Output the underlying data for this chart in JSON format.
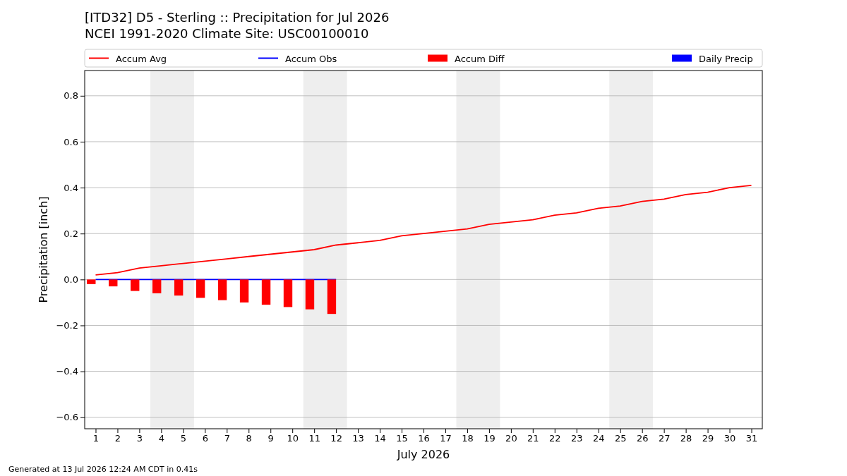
{
  "chart_data": {
    "type": "line",
    "title": "[ITD32] D5 - Sterling  :: Precipitation for Jul 2026",
    "subtitle": "NCEI 1991-2020 Climate Site: USC00100010",
    "xlabel": "July 2026",
    "ylabel": "Precipitation [inch]",
    "xlim": [
      0.5,
      31.5
    ],
    "xticks": [
      1,
      2,
      3,
      4,
      5,
      6,
      7,
      8,
      9,
      10,
      11,
      12,
      13,
      14,
      15,
      16,
      17,
      18,
      19,
      20,
      21,
      22,
      23,
      24,
      25,
      26,
      27,
      28,
      29,
      30,
      31
    ],
    "ylim": [
      -0.65,
      0.91
    ],
    "yticks": [
      {
        "value": -0.6,
        "label": "−0.6"
      },
      {
        "value": -0.4,
        "label": "−0.4"
      },
      {
        "value": -0.2,
        "label": "−0.2"
      },
      {
        "value": 0,
        "label": "0.0"
      },
      {
        "value": 0.2,
        "label": "0.2"
      },
      {
        "value": 0.4,
        "label": "0.4"
      },
      {
        "value": 0.6,
        "label": "0.6"
      },
      {
        "value": 0.8,
        "label": "0.8"
      }
    ],
    "grid": "y",
    "legend": "top",
    "bands": [
      {
        "axis": "x",
        "from": 3.5,
        "to": 5.5,
        "color": "#eeeeee"
      },
      {
        "axis": "x",
        "from": 10.5,
        "to": 12.5,
        "color": "#eeeeee"
      },
      {
        "axis": "x",
        "from": 17.5,
        "to": 19.5,
        "color": "#eeeeee"
      },
      {
        "axis": "x",
        "from": 24.5,
        "to": 26.5,
        "color": "#eeeeee"
      }
    ],
    "series": [
      {
        "name": "Accum Avg",
        "color": "#ff0000",
        "x": [
          1,
          2,
          3,
          4,
          5,
          6,
          7,
          8,
          9,
          10,
          11,
          12,
          13,
          14,
          15,
          16,
          17,
          18,
          19,
          20,
          21,
          22,
          23,
          24,
          25,
          26,
          27,
          28,
          29,
          30,
          31
        ],
        "values": [
          0.02,
          0.03,
          0.05,
          0.06,
          0.07,
          0.08,
          0.09,
          0.1,
          0.11,
          0.12,
          0.13,
          0.15,
          0.16,
          0.17,
          0.19,
          0.2,
          0.21,
          0.22,
          0.24,
          0.25,
          0.26,
          0.28,
          0.29,
          0.31,
          0.32,
          0.34,
          0.35,
          0.37,
          0.38,
          0.4,
          0.41
        ]
      },
      {
        "name": "Accum Obs",
        "color": "#0000ff",
        "x": [
          1,
          2,
          3,
          4,
          5,
          6,
          7,
          8,
          9,
          10,
          11,
          12
        ],
        "values": [
          0,
          0,
          0,
          0,
          0,
          0,
          0,
          0,
          0,
          0,
          0,
          0
        ]
      },
      {
        "name": "Accum Diff",
        "type": "bar",
        "color": "#ff0000",
        "x": [
          1,
          2,
          3,
          4,
          5,
          6,
          7,
          8,
          9,
          10,
          11,
          12
        ],
        "values": [
          -0.02,
          -0.03,
          -0.05,
          -0.06,
          -0.07,
          -0.08,
          -0.09,
          -0.1,
          -0.11,
          -0.12,
          -0.13,
          -0.15
        ]
      },
      {
        "name": "Daily Precip",
        "type": "bar",
        "color": "#0000ff",
        "x": [
          1,
          2,
          3,
          4,
          5,
          6,
          7,
          8,
          9,
          10,
          11,
          12
        ],
        "values": [
          0,
          0,
          0,
          0,
          0,
          0,
          0,
          0,
          0,
          0,
          0,
          0
        ]
      }
    ],
    "annotations": [
      "Generated at 13 Jul 2026 12:24 AM CDT in 0.41s"
    ]
  }
}
